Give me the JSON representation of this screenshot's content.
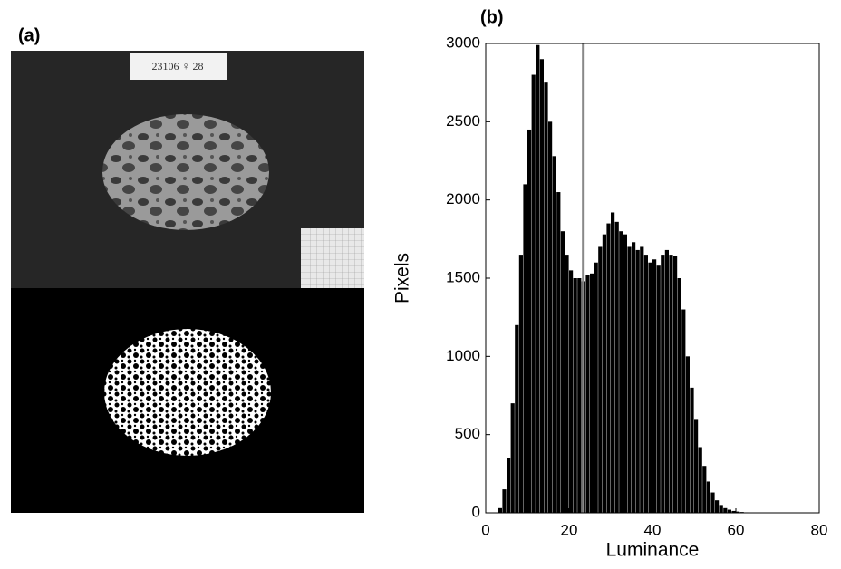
{
  "panel_labels": [
    "(a)",
    "(b)"
  ],
  "photo_tag": "23106 ♀ 28",
  "chart_data": {
    "type": "histogram",
    "xlabel": "Luminance",
    "ylabel": "Pixels",
    "bins": [
      3,
      4,
      5,
      6,
      7,
      8,
      9,
      10,
      11,
      12,
      13,
      14,
      15,
      16,
      17,
      18,
      19,
      20,
      21,
      22,
      23,
      24,
      25,
      26,
      27,
      28,
      29,
      30,
      31,
      32,
      33,
      34,
      35,
      36,
      37,
      38,
      39,
      40,
      41,
      42,
      43,
      44,
      45,
      46,
      47,
      48,
      49,
      50,
      51,
      52,
      53,
      54,
      55,
      56,
      57,
      58,
      59,
      60,
      61,
      62,
      63,
      64,
      65
    ],
    "counts": [
      30,
      150,
      350,
      700,
      1200,
      1650,
      2100,
      2450,
      2800,
      2990,
      2900,
      2750,
      2500,
      2280,
      2050,
      1800,
      1650,
      1550,
      1500,
      1500,
      1480,
      1520,
      1530,
      1600,
      1700,
      1780,
      1850,
      1920,
      1860,
      1800,
      1780,
      1700,
      1730,
      1680,
      1700,
      1650,
      1600,
      1620,
      1580,
      1650,
      1680,
      1650,
      1640,
      1500,
      1300,
      1000,
      800,
      600,
      420,
      300,
      200,
      130,
      80,
      50,
      30,
      20,
      12,
      8,
      5,
      3,
      2,
      1
    ],
    "color": "#000000",
    "threshold": 23.3,
    "threshold_color": "#888888",
    "xlim": [
      0,
      80
    ],
    "xticks": [
      0,
      20,
      40,
      60,
      80
    ],
    "ylim": [
      0,
      3000
    ],
    "yticks": [
      0,
      500,
      1000,
      1500,
      2000,
      2500,
      3000
    ],
    "grid": false
  }
}
